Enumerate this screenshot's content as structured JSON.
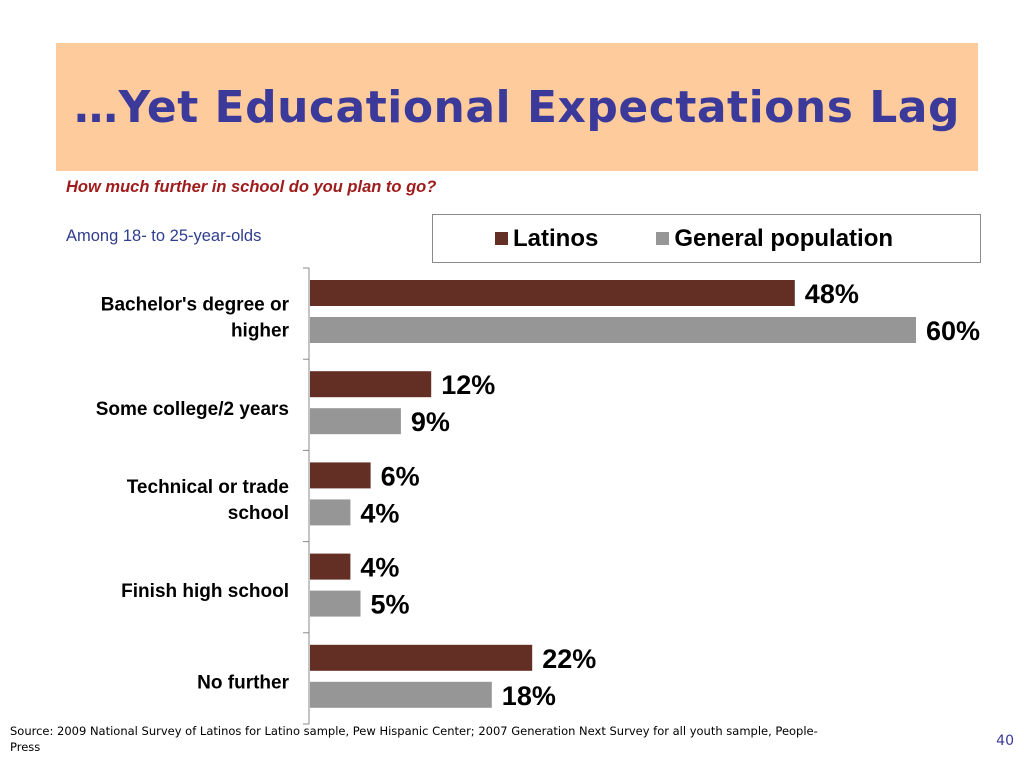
{
  "slide": {
    "title": "…Yet Educational Expectations Lag",
    "question": "How much further in school do you plan to go?",
    "subtitle": "Among 18- to 25-year-olds",
    "source": "Source: 2009 National Survey of Latinos for Latino sample, Pew Hispanic Center; 2007 Generation Next Survey for all youth sample, People-Press",
    "page_number": "40"
  },
  "colors": {
    "latinos": "#632f25",
    "general": "#969696",
    "title_band": "#fdcb9c",
    "title_text": "#3b3a9a"
  },
  "chart_data": {
    "type": "bar",
    "orientation": "horizontal",
    "categories": [
      [
        "Bachelor's degree or",
        "higher"
      ],
      [
        "Some college/2 years"
      ],
      [
        "Technical or trade",
        "school"
      ],
      [
        "Finish high school"
      ],
      [
        "No further"
      ]
    ],
    "series": [
      {
        "name": "Latinos",
        "values": [
          48,
          12,
          6,
          4,
          22
        ],
        "labels": [
          "48%",
          "12%",
          "6%",
          "4%",
          "22%"
        ]
      },
      {
        "name": "General population",
        "values": [
          60,
          9,
          4,
          5,
          18
        ],
        "labels": [
          "60%",
          "9%",
          "4%",
          "5%",
          "18%"
        ]
      }
    ],
    "unit": "%",
    "legend": "top-right",
    "grid": false
  }
}
